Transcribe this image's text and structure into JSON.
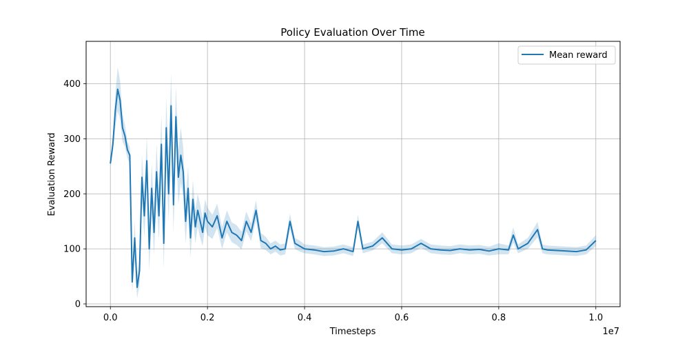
{
  "chart_data": {
    "type": "line",
    "title": "Policy Evaluation Over Time",
    "xlabel": "Timesteps",
    "ylabel": "Evaluation Reward",
    "x_offset_label": "1e7",
    "x_scale": 10000000,
    "xlim": [
      -0.05,
      1.05
    ],
    "ylim": [
      -5,
      477
    ],
    "x_ticks": [
      0.0,
      0.2,
      0.4,
      0.6,
      0.8,
      1.0
    ],
    "x_tick_labels": [
      "0.0",
      "0.2",
      "0.4",
      "0.6",
      "0.8",
      "1.0"
    ],
    "y_ticks": [
      0,
      100,
      200,
      300,
      400
    ],
    "y_tick_labels": [
      "0",
      "100",
      "200",
      "300",
      "400"
    ],
    "grid": true,
    "legend_position": "top-right",
    "series": [
      {
        "name": "Mean reward",
        "color": "#1f77b4",
        "x": [
          0.0,
          0.005,
          0.01,
          0.015,
          0.02,
          0.025,
          0.03,
          0.035,
          0.04,
          0.045,
          0.05,
          0.055,
          0.06,
          0.065,
          0.07,
          0.075,
          0.08,
          0.085,
          0.09,
          0.095,
          0.1,
          0.105,
          0.11,
          0.115,
          0.12,
          0.125,
          0.13,
          0.135,
          0.14,
          0.145,
          0.15,
          0.155,
          0.16,
          0.165,
          0.17,
          0.175,
          0.18,
          0.185,
          0.19,
          0.195,
          0.2,
          0.21,
          0.22,
          0.23,
          0.24,
          0.25,
          0.26,
          0.27,
          0.28,
          0.29,
          0.3,
          0.31,
          0.32,
          0.33,
          0.34,
          0.35,
          0.36,
          0.37,
          0.38,
          0.39,
          0.4,
          0.42,
          0.44,
          0.46,
          0.48,
          0.5,
          0.51,
          0.52,
          0.54,
          0.56,
          0.58,
          0.6,
          0.62,
          0.64,
          0.66,
          0.68,
          0.7,
          0.72,
          0.74,
          0.76,
          0.78,
          0.8,
          0.82,
          0.83,
          0.84,
          0.86,
          0.88,
          0.89,
          0.9,
          0.92,
          0.94,
          0.96,
          0.98,
          1.0
        ],
        "y": [
          255,
          290,
          350,
          390,
          370,
          320,
          305,
          280,
          270,
          40,
          120,
          30,
          60,
          230,
          160,
          260,
          100,
          210,
          130,
          240,
          160,
          290,
          110,
          320,
          200,
          360,
          180,
          340,
          230,
          270,
          240,
          150,
          210,
          120,
          190,
          140,
          170,
          150,
          130,
          165,
          150,
          140,
          160,
          120,
          150,
          130,
          125,
          115,
          150,
          130,
          170,
          115,
          110,
          100,
          105,
          98,
          100,
          150,
          110,
          105,
          100,
          98,
          95,
          96,
          100,
          95,
          150,
          100,
          105,
          120,
          100,
          98,
          100,
          110,
          100,
          98,
          97,
          100,
          98,
          99,
          96,
          100,
          98,
          125,
          100,
          110,
          135,
          100,
          98,
          97,
          96,
          95,
          98,
          115
        ],
        "band_half_width": [
          5,
          15,
          30,
          40,
          35,
          25,
          20,
          15,
          15,
          20,
          30,
          20,
          25,
          40,
          40,
          45,
          40,
          45,
          40,
          50,
          45,
          55,
          45,
          55,
          50,
          60,
          50,
          55,
          50,
          50,
          45,
          40,
          40,
          35,
          35,
          30,
          30,
          30,
          25,
          25,
          25,
          22,
          22,
          20,
          20,
          18,
          18,
          16,
          18,
          16,
          18,
          14,
          12,
          10,
          10,
          10,
          10,
          14,
          10,
          10,
          8,
          8,
          8,
          8,
          8,
          8,
          12,
          8,
          8,
          10,
          8,
          8,
          8,
          8,
          8,
          8,
          8,
          8,
          8,
          8,
          8,
          10,
          8,
          14,
          8,
          10,
          14,
          8,
          8,
          8,
          8,
          8,
          8,
          10
        ]
      }
    ]
  }
}
